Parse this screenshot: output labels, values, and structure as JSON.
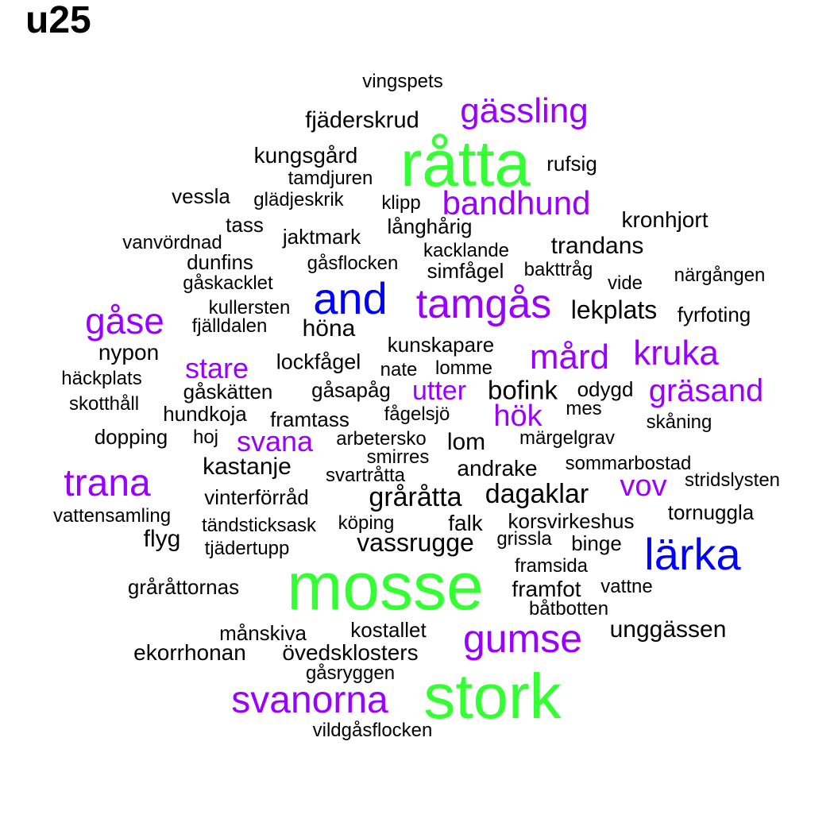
{
  "title": "u25",
  "colors": {
    "top": "#33ff33",
    "high": "#0000ff",
    "mid": "#9900ff",
    "low": "#000000"
  },
  "words": [
    {
      "text": "vingspets",
      "level": "low"
    },
    {
      "text": "gässling",
      "level": "mid"
    },
    {
      "text": "fjäderskrud",
      "level": "low"
    },
    {
      "text": "råtta",
      "level": "top"
    },
    {
      "text": "kungsgård",
      "level": "low"
    },
    {
      "text": "rufsig",
      "level": "low"
    },
    {
      "text": "tamdjuren",
      "level": "low"
    },
    {
      "text": "vessla",
      "level": "low"
    },
    {
      "text": "glädjeskrik",
      "level": "low"
    },
    {
      "text": "klipp",
      "level": "low"
    },
    {
      "text": "bandhund",
      "level": "mid"
    },
    {
      "text": "kronhjort",
      "level": "low"
    },
    {
      "text": "tass",
      "level": "low"
    },
    {
      "text": "långhårig",
      "level": "low"
    },
    {
      "text": "jaktmark",
      "level": "low"
    },
    {
      "text": "vanvördnad",
      "level": "low"
    },
    {
      "text": "trandans",
      "level": "low"
    },
    {
      "text": "kacklande",
      "level": "low"
    },
    {
      "text": "dunfins",
      "level": "low"
    },
    {
      "text": "gåsflocken",
      "level": "low"
    },
    {
      "text": "simfågel",
      "level": "low"
    },
    {
      "text": "bakttråg",
      "level": "low"
    },
    {
      "text": "närgången",
      "level": "low"
    },
    {
      "text": "gåskacklet",
      "level": "low"
    },
    {
      "text": "vide",
      "level": "low"
    },
    {
      "text": "and",
      "level": "high"
    },
    {
      "text": "tamgås",
      "level": "mid"
    },
    {
      "text": "kullersten",
      "level": "low"
    },
    {
      "text": "lekplats",
      "level": "low"
    },
    {
      "text": "fyrfoting",
      "level": "low"
    },
    {
      "text": "gåse",
      "level": "mid"
    },
    {
      "text": "fjälldalen",
      "level": "low"
    },
    {
      "text": "höna",
      "level": "low"
    },
    {
      "text": "kunskapare",
      "level": "low"
    },
    {
      "text": "nypon",
      "level": "low"
    },
    {
      "text": "kruka",
      "level": "mid"
    },
    {
      "text": "mård",
      "level": "mid"
    },
    {
      "text": "lockfågel",
      "level": "low"
    },
    {
      "text": "stare",
      "level": "mid"
    },
    {
      "text": "nate",
      "level": "low"
    },
    {
      "text": "lomme",
      "level": "low"
    },
    {
      "text": "häckplats",
      "level": "low"
    },
    {
      "text": "odygd",
      "level": "low"
    },
    {
      "text": "gåsapåg",
      "level": "low"
    },
    {
      "text": "bofink",
      "level": "low"
    },
    {
      "text": "gräsand",
      "level": "mid"
    },
    {
      "text": "gåskätten",
      "level": "low"
    },
    {
      "text": "utter",
      "level": "mid"
    },
    {
      "text": "skotthåll",
      "level": "low"
    },
    {
      "text": "mes",
      "level": "low"
    },
    {
      "text": "fågelsjö",
      "level": "low"
    },
    {
      "text": "hundkoja",
      "level": "low"
    },
    {
      "text": "hök",
      "level": "mid"
    },
    {
      "text": "framtass",
      "level": "low"
    },
    {
      "text": "skåning",
      "level": "low"
    },
    {
      "text": "dopping",
      "level": "low"
    },
    {
      "text": "hoj",
      "level": "low"
    },
    {
      "text": "svana",
      "level": "mid"
    },
    {
      "text": "arbetersko",
      "level": "low"
    },
    {
      "text": "lom",
      "level": "low"
    },
    {
      "text": "märgelgrav",
      "level": "low"
    },
    {
      "text": "smirres",
      "level": "low"
    },
    {
      "text": "kastanje",
      "level": "low"
    },
    {
      "text": "sommarbostad",
      "level": "low"
    },
    {
      "text": "andrake",
      "level": "low"
    },
    {
      "text": "trana",
      "level": "mid"
    },
    {
      "text": "svartråtta",
      "level": "low"
    },
    {
      "text": "vov",
      "level": "mid"
    },
    {
      "text": "stridslysten",
      "level": "low"
    },
    {
      "text": "vinterförråd",
      "level": "low"
    },
    {
      "text": "gråråtta",
      "level": "low"
    },
    {
      "text": "dagaklar",
      "level": "low"
    },
    {
      "text": "vattensamling",
      "level": "low"
    },
    {
      "text": "tornuggla",
      "level": "low"
    },
    {
      "text": "tändsticksask",
      "level": "low"
    },
    {
      "text": "köping",
      "level": "low"
    },
    {
      "text": "falk",
      "level": "low"
    },
    {
      "text": "korsvirkeshus",
      "level": "low"
    },
    {
      "text": "flyg",
      "level": "low"
    },
    {
      "text": "grissla",
      "level": "low"
    },
    {
      "text": "binge",
      "level": "low"
    },
    {
      "text": "vassrugge",
      "level": "low"
    },
    {
      "text": "lärka",
      "level": "high"
    },
    {
      "text": "tjädertupp",
      "level": "low"
    },
    {
      "text": "framsida",
      "level": "low"
    },
    {
      "text": "mosse",
      "level": "top"
    },
    {
      "text": "gråråttornas",
      "level": "low"
    },
    {
      "text": "framfot",
      "level": "low"
    },
    {
      "text": "vattne",
      "level": "low"
    },
    {
      "text": "båtbotten",
      "level": "low"
    },
    {
      "text": "unggässen",
      "level": "low"
    },
    {
      "text": "kostallet",
      "level": "low"
    },
    {
      "text": "månskiva",
      "level": "low"
    },
    {
      "text": "gumse",
      "level": "mid"
    },
    {
      "text": "ekorrhonan",
      "level": "low"
    },
    {
      "text": "övedsklosters",
      "level": "low"
    },
    {
      "text": "gåsryggen",
      "level": "low"
    },
    {
      "text": "stork",
      "level": "top"
    },
    {
      "text": "svanorna",
      "level": "mid"
    },
    {
      "text": "vildgåsflocken",
      "level": "low"
    }
  ]
}
